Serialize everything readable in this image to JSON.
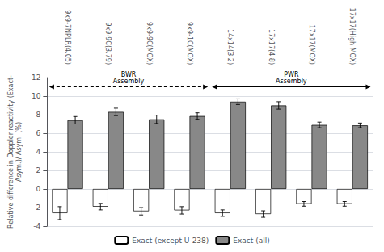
{
  "chart_data": {
    "type": "bar",
    "categories": [
      "9x9-7NPLR(4.05)",
      "9x9-9C(3.79)",
      "9x9-9C(MOX)",
      "9x9-1C(MOX)",
      "14x14(3.2)",
      "17x17(4.8)",
      "17x17(MOX)",
      "17x17(High MOX)"
    ],
    "series": [
      {
        "name": "Exact (except U-238)",
        "color": "#ffffff",
        "values": [
          -2.6,
          -1.9,
          -2.4,
          -2.3,
          -2.6,
          -2.7,
          -1.6,
          -1.6
        ],
        "errors": [
          0.7,
          0.35,
          0.4,
          0.4,
          0.35,
          0.35,
          0.25,
          0.25
        ]
      },
      {
        "name": "Exact (all)",
        "color": "#888888",
        "values": [
          7.4,
          8.3,
          7.5,
          7.85,
          9.4,
          9.0,
          6.9,
          6.85
        ],
        "errors": [
          0.4,
          0.4,
          0.45,
          0.35,
          0.3,
          0.4,
          0.3,
          0.25
        ]
      }
    ],
    "ylabel": "Relative difference in Doppler reactivity (Exact-\nAsym.)/ Asym. (%)",
    "ylim": [
      -4,
      12
    ],
    "yticks": [
      -4,
      -2,
      0,
      2,
      4,
      6,
      8,
      10,
      12
    ],
    "grid": true,
    "legend": "bottom",
    "annotations": [
      {
        "text": "BWR\nAssembly",
        "y": 11,
        "span": [
          "9x9-7NPLR(4.05)",
          "9x9-1C(MOX)"
        ],
        "line_style": "dashed"
      },
      {
        "text": "PWR\nAssembly",
        "y": 11,
        "span": [
          "14x14(3.2)",
          "17x17(High MOX)"
        ],
        "line_style": "solid"
      }
    ]
  }
}
